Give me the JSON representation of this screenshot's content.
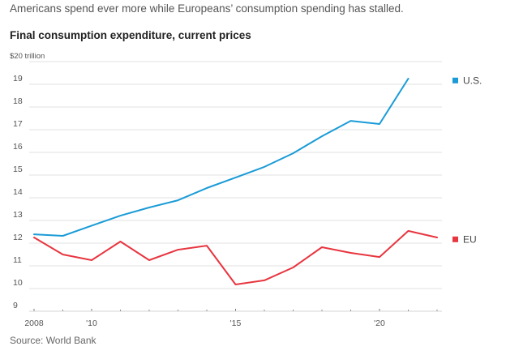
{
  "header": {
    "subtitle": "Americans spend ever more while Europeans’ consumption spending has stalled.",
    "title": "Final consumption expenditure, current prices"
  },
  "footer": {
    "source": "Source: World Bank"
  },
  "chart_data": {
    "type": "line",
    "title": "Final consumption expenditure, current prices",
    "subtitle": "Americans spend ever more while Europeans’ consumption spending has stalled.",
    "xlabel": "",
    "ylabel": "$ trillion",
    "x": [
      2008,
      2009,
      2010,
      2011,
      2012,
      2013,
      2014,
      2015,
      2016,
      2017,
      2018,
      2019,
      2020,
      2021,
      2022
    ],
    "xlim": [
      2008,
      2022
    ],
    "ylim": [
      9,
      20
    ],
    "yticks": [
      9,
      10,
      11,
      12,
      13,
      14,
      15,
      16,
      17,
      18,
      19,
      20
    ],
    "ytick_labels": [
      "9",
      "10",
      "11",
      "12",
      "13",
      "14",
      "15",
      "16",
      "17",
      "18",
      "19",
      "$20 trillion"
    ],
    "xticks_labeled": [
      {
        "x": 2008,
        "label": "2008"
      },
      {
        "x": 2010,
        "label": "'10"
      },
      {
        "x": 2015,
        "label": "'15"
      },
      {
        "x": 2020,
        "label": "'20"
      }
    ],
    "grid": true,
    "legend": "right, inline at line ends",
    "series": [
      {
        "name": "U.S.",
        "color": "#1a9bd7",
        "values": [
          12.39,
          12.32,
          12.77,
          13.21,
          13.57,
          13.89,
          14.43,
          14.89,
          15.36,
          15.96,
          16.71,
          17.39,
          17.25,
          19.25,
          null
        ]
      },
      {
        "name": "EU",
        "color": "#e8353f",
        "values": [
          12.25,
          11.5,
          11.25,
          12.07,
          11.25,
          11.71,
          11.89,
          10.18,
          10.36,
          10.93,
          11.82,
          11.57,
          11.39,
          12.54,
          12.25
        ]
      }
    ],
    "source": "Source: World Bank"
  }
}
